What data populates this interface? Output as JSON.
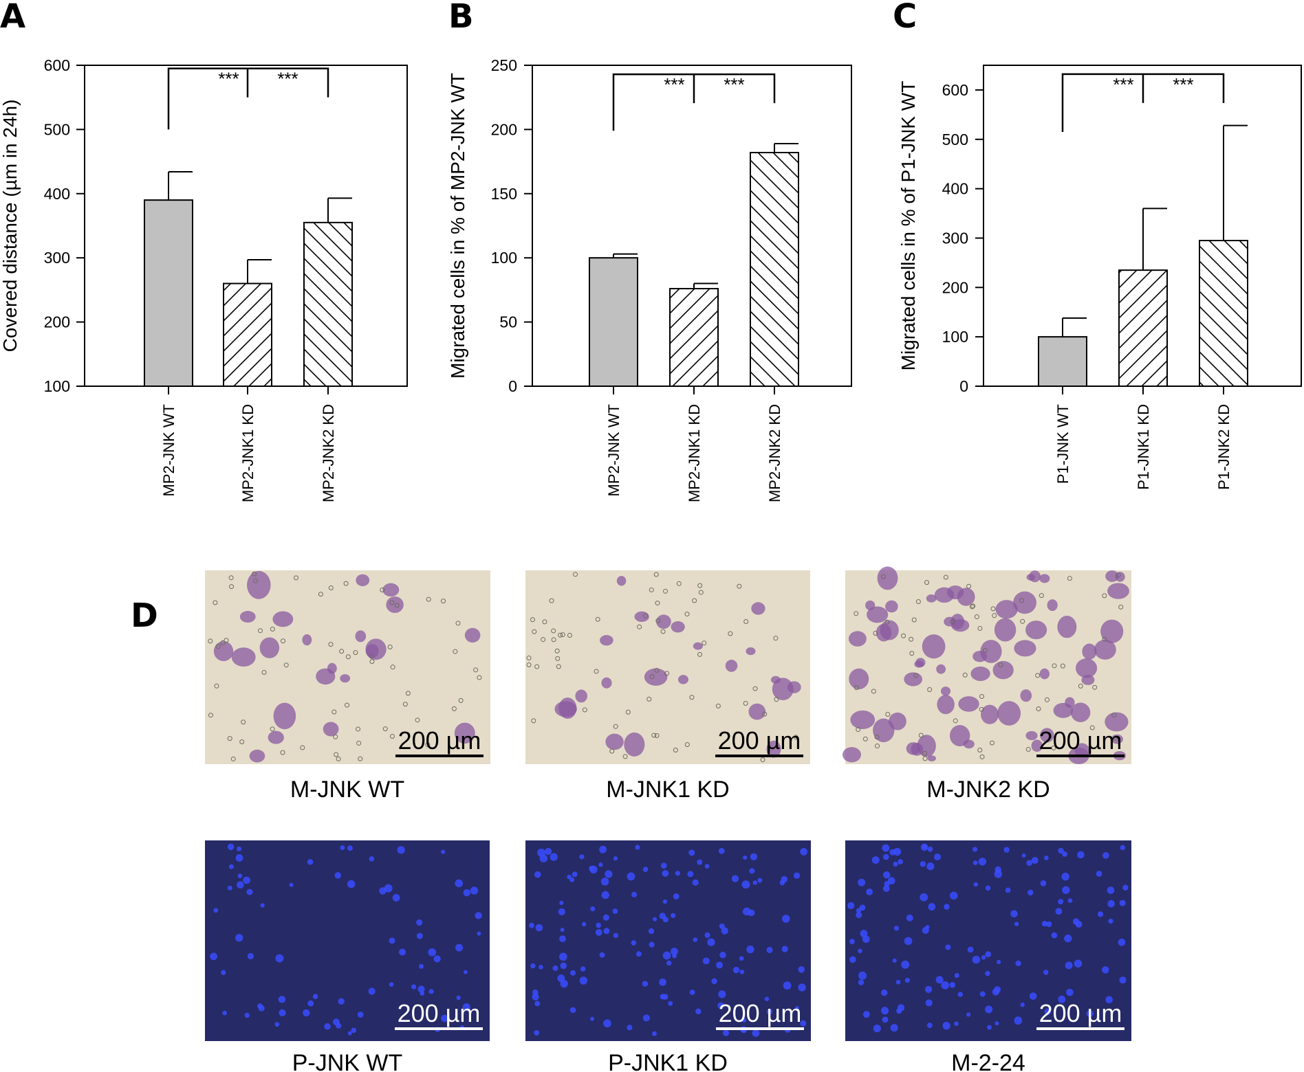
{
  "panel_letters": [
    "A",
    "B",
    "C",
    "D"
  ],
  "colors": {
    "wt_fill": "#c0c0c0",
    "kd_fill": "#ffffff",
    "stroke": "#000000",
    "bright_bg": "#e4dcc8",
    "bright_cell": "#8a5aa0",
    "fluor_bg": "#262a66",
    "fluor_cell": "#3a4cff",
    "scale_dark": "#000000",
    "scale_light": "#ffffff"
  },
  "chart_data": [
    {
      "type": "bar",
      "ylabel": "Covered distance (µm in 24h)",
      "ylim": [
        100,
        600
      ],
      "yticks": [
        "100",
        "200",
        "300",
        "400",
        "500",
        "600"
      ],
      "categories": [
        "MP2-JNK WT",
        "MP2-JNK1 KD",
        "MP2-JNK2 KD"
      ],
      "values": [
        390,
        260,
        355
      ],
      "errors": [
        44,
        37,
        38
      ],
      "patterns": [
        "solid",
        "forward",
        "backward"
      ],
      "significance": [
        "***",
        "***"
      ],
      "sig_y": [
        595,
        500
      ]
    },
    {
      "type": "bar",
      "ylabel": "Migrated cells in % of MP2-JNK WT",
      "ylim": [
        0,
        250
      ],
      "yticks": [
        "0",
        "50",
        "100",
        "150",
        "200",
        "250"
      ],
      "categories": [
        "MP2-JNK WT",
        "MP2-JNK1 KD",
        "MP2-JNK2 KD"
      ],
      "values": [
        100,
        76,
        182
      ],
      "errors": [
        3,
        4,
        7
      ],
      "patterns": [
        "solid",
        "forward",
        "backward"
      ],
      "significance": [
        "***",
        "***"
      ],
      "sig_y": [
        243,
        199
      ]
    },
    {
      "type": "bar",
      "ylabel": "Migrated cells in % of P1-JNK WT",
      "ylim": [
        0,
        650
      ],
      "yticks": [
        "0",
        "100",
        "200",
        "300",
        "400",
        "500",
        "600"
      ],
      "categories": [
        "P1-JNK WT",
        "P1-JNK1 KD",
        "P1-JNK2 KD"
      ],
      "values": [
        100,
        235,
        295
      ],
      "errors": [
        38,
        125,
        233
      ],
      "patterns": [
        "solid",
        "forward",
        "backward"
      ],
      "significance": [
        "***",
        "***"
      ],
      "sig_y": [
        632,
        515
      ]
    }
  ],
  "micrographs": [
    {
      "label": "M-JNK WT",
      "kind": "bright",
      "scale": "200 µm"
    },
    {
      "label": "M-JNK1 KD",
      "kind": "bright",
      "scale": "200 µm"
    },
    {
      "label": "M-JNK2 KD",
      "kind": "bright",
      "scale": "200 µm"
    },
    {
      "label": "P-JNK WT",
      "kind": "fluor",
      "scale": "200 µm"
    },
    {
      "label": "P-JNK1 KD",
      "kind": "fluor",
      "scale": "200 µm"
    },
    {
      "label": "M-2-24",
      "kind": "fluor",
      "scale": "200 µm"
    }
  ]
}
